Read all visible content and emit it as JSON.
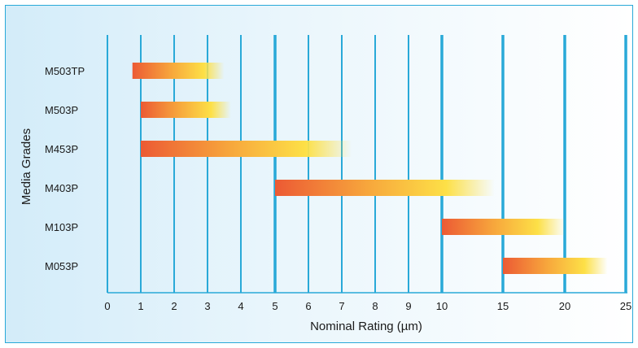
{
  "chart_data": {
    "type": "bar",
    "subtype": "floating-range",
    "xlabel": "Nominal Rating (µm)",
    "ylabel": "Media Grades",
    "x_ticks": [
      "0",
      "1",
      "2",
      "3",
      "4",
      "5",
      "6",
      "7",
      "8",
      "9",
      "10",
      "15",
      "20",
      "25"
    ],
    "x_ticks_emphasized": [
      "5",
      "10",
      "15",
      "20",
      "25"
    ],
    "categories": [
      "M503TP",
      "M503P",
      "M453P",
      "M403P",
      "M103P",
      "M053P"
    ],
    "ranges": [
      {
        "category": "M503TP",
        "start": 0.75,
        "end": 3.5
      },
      {
        "category": "M503P",
        "start": 1,
        "end": 3.7
      },
      {
        "category": "M453P",
        "start": 1,
        "end": 7.3
      },
      {
        "category": "M403P",
        "start": 5,
        "end": 14.3
      },
      {
        "category": "M103P",
        "start": 10,
        "end": 20
      },
      {
        "category": "M053P",
        "start": 15,
        "end": 23.5
      }
    ],
    "grid": true,
    "colors": {
      "bar_start": "#ec5a34",
      "bar_mid": "#f7a63c",
      "bar_end": "#fde047",
      "gridline": "#29a9d8",
      "frame": "#29a9d8"
    }
  }
}
